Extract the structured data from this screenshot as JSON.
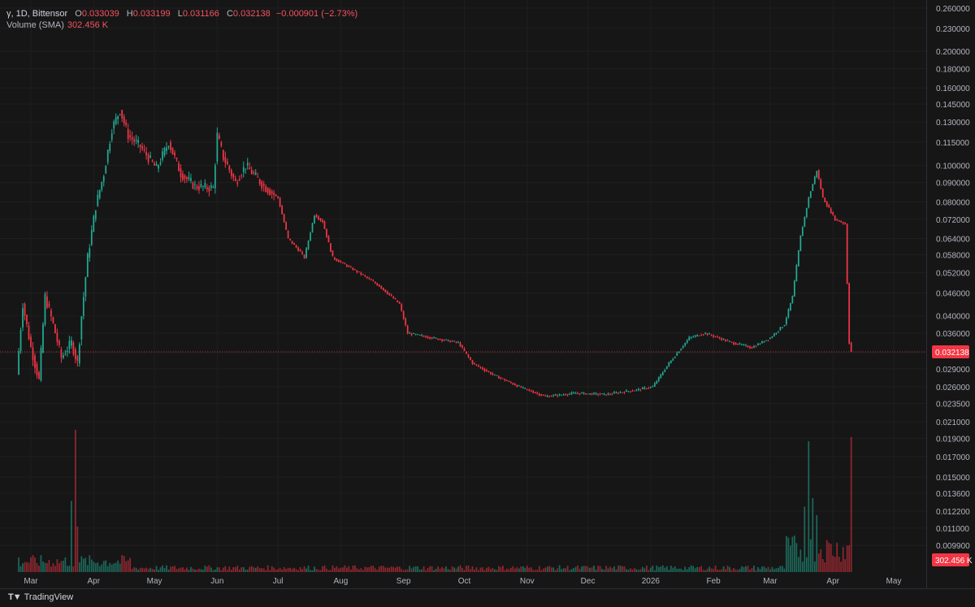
{
  "legend": {
    "symbol": "γ, 1D, Bittensor",
    "o_label": "O",
    "o": "0.033039",
    "h_label": "H",
    "h": "0.033199",
    "l_label": "L",
    "l": "0.031166",
    "c_label": "C",
    "c": "0.032138",
    "change": "−0.000901 (−2.73%)",
    "volume_label": "Volume (SMA)",
    "volume_value": "302.456 K"
  },
  "brand": {
    "name": "TradingView"
  },
  "colors": {
    "up": "#22ab94",
    "down": "#f23645",
    "background": "#161616",
    "grid": "#1f1f1f",
    "axis_text": "#b2b5be"
  },
  "chart_data": {
    "type": "candlestick",
    "y_scale": "log",
    "y_ticks": [
      "0.260000",
      "0.230000",
      "0.200000",
      "0.180000",
      "0.160000",
      "0.145000",
      "0.130000",
      "0.115000",
      "0.100000",
      "0.090000",
      "0.080000",
      "0.072000",
      "0.064000",
      "0.058000",
      "0.052000",
      "0.046000",
      "0.040000",
      "0.036000",
      "0.032000",
      "0.029000",
      "0.026000",
      "0.023500",
      "0.021000",
      "0.019000",
      "0.017000",
      "0.015000",
      "0.013600",
      "0.012200",
      "0.011000",
      "0.009900"
    ],
    "x_ticks": [
      "Mar",
      "Apr",
      "May",
      "Jun",
      "Jul",
      "Aug",
      "Sep",
      "Oct",
      "Nov",
      "Dec",
      "2026",
      "Feb",
      "Mar",
      "Apr",
      "May"
    ],
    "last_price_label": "0.032138",
    "volume_label": "302.456 K",
    "price_path": [
      {
        "date": "2025-02-22",
        "close": 0.028
      },
      {
        "date": "2025-02-25",
        "close": 0.043
      },
      {
        "date": "2025-03-01",
        "close": 0.033
      },
      {
        "date": "2025-03-05",
        "close": 0.027
      },
      {
        "date": "2025-03-08",
        "close": 0.045
      },
      {
        "date": "2025-03-12",
        "close": 0.038
      },
      {
        "date": "2025-03-16",
        "close": 0.031
      },
      {
        "date": "2025-03-21",
        "close": 0.034
      },
      {
        "date": "2025-03-24",
        "close": 0.03
      },
      {
        "date": "2025-03-26",
        "close": 0.04
      },
      {
        "date": "2025-03-29",
        "close": 0.057
      },
      {
        "date": "2025-04-02",
        "close": 0.078
      },
      {
        "date": "2025-04-06",
        "close": 0.095
      },
      {
        "date": "2025-04-10",
        "close": 0.125
      },
      {
        "date": "2025-04-14",
        "close": 0.14
      },
      {
        "date": "2025-04-18",
        "close": 0.12
      },
      {
        "date": "2025-04-24",
        "close": 0.112
      },
      {
        "date": "2025-05-02",
        "close": 0.098
      },
      {
        "date": "2025-05-08",
        "close": 0.115
      },
      {
        "date": "2025-05-14",
        "close": 0.095
      },
      {
        "date": "2025-05-21",
        "close": 0.088
      },
      {
        "date": "2025-05-30",
        "close": 0.087
      },
      {
        "date": "2025-06-01",
        "close": 0.12
      },
      {
        "date": "2025-06-04",
        "close": 0.105
      },
      {
        "date": "2025-06-10",
        "close": 0.09
      },
      {
        "date": "2025-06-15",
        "close": 0.1
      },
      {
        "date": "2025-06-24",
        "close": 0.088
      },
      {
        "date": "2025-07-01",
        "close": 0.082
      },
      {
        "date": "2025-07-06",
        "close": 0.064
      },
      {
        "date": "2025-07-12",
        "close": 0.059
      },
      {
        "date": "2025-07-14",
        "close": 0.057
      },
      {
        "date": "2025-07-19",
        "close": 0.074
      },
      {
        "date": "2025-07-23",
        "close": 0.071
      },
      {
        "date": "2025-07-28",
        "close": 0.057
      },
      {
        "date": "2025-08-10",
        "close": 0.052
      },
      {
        "date": "2025-08-20",
        "close": 0.048
      },
      {
        "date": "2025-08-30",
        "close": 0.043
      },
      {
        "date": "2025-09-03",
        "close": 0.036
      },
      {
        "date": "2025-09-15",
        "close": 0.035
      },
      {
        "date": "2025-09-28",
        "close": 0.034
      },
      {
        "date": "2025-10-05",
        "close": 0.03
      },
      {
        "date": "2025-10-15",
        "close": 0.028
      },
      {
        "date": "2025-10-28",
        "close": 0.026
      },
      {
        "date": "2025-11-10",
        "close": 0.0245
      },
      {
        "date": "2025-11-25",
        "close": 0.025
      },
      {
        "date": "2025-12-10",
        "close": 0.0248
      },
      {
        "date": "2025-12-25",
        "close": 0.0255
      },
      {
        "date": "2026-01-02",
        "close": 0.026
      },
      {
        "date": "2026-01-10",
        "close": 0.03
      },
      {
        "date": "2026-01-20",
        "close": 0.035
      },
      {
        "date": "2026-01-28",
        "close": 0.036
      },
      {
        "date": "2026-02-10",
        "close": 0.034
      },
      {
        "date": "2026-02-20",
        "close": 0.033
      },
      {
        "date": "2026-03-01",
        "close": 0.035
      },
      {
        "date": "2026-03-08",
        "close": 0.038
      },
      {
        "date": "2026-03-12",
        "close": 0.045
      },
      {
        "date": "2026-03-16",
        "close": 0.065
      },
      {
        "date": "2026-03-20",
        "close": 0.082
      },
      {
        "date": "2026-03-24",
        "close": 0.097
      },
      {
        "date": "2026-03-27",
        "close": 0.082
      },
      {
        "date": "2026-04-02",
        "close": 0.072
      },
      {
        "date": "2026-04-07",
        "close": 0.07
      },
      {
        "date": "2026-04-09",
        "close": 0.034
      },
      {
        "date": "2026-04-10",
        "close": 0.032138
      }
    ],
    "volume_spikes": [
      {
        "date": "2025-03-23",
        "value": 1.0
      },
      {
        "date": "2025-03-21",
        "value": 0.5
      },
      {
        "date": "2025-03-24",
        "value": 0.32
      },
      {
        "date": "2026-03-20",
        "value": 0.92
      },
      {
        "date": "2026-03-22",
        "value": 0.52
      },
      {
        "date": "2026-03-18",
        "value": 0.46
      },
      {
        "date": "2026-03-24",
        "value": 0.4
      },
      {
        "date": "2026-04-10",
        "value": 0.95
      }
    ]
  }
}
